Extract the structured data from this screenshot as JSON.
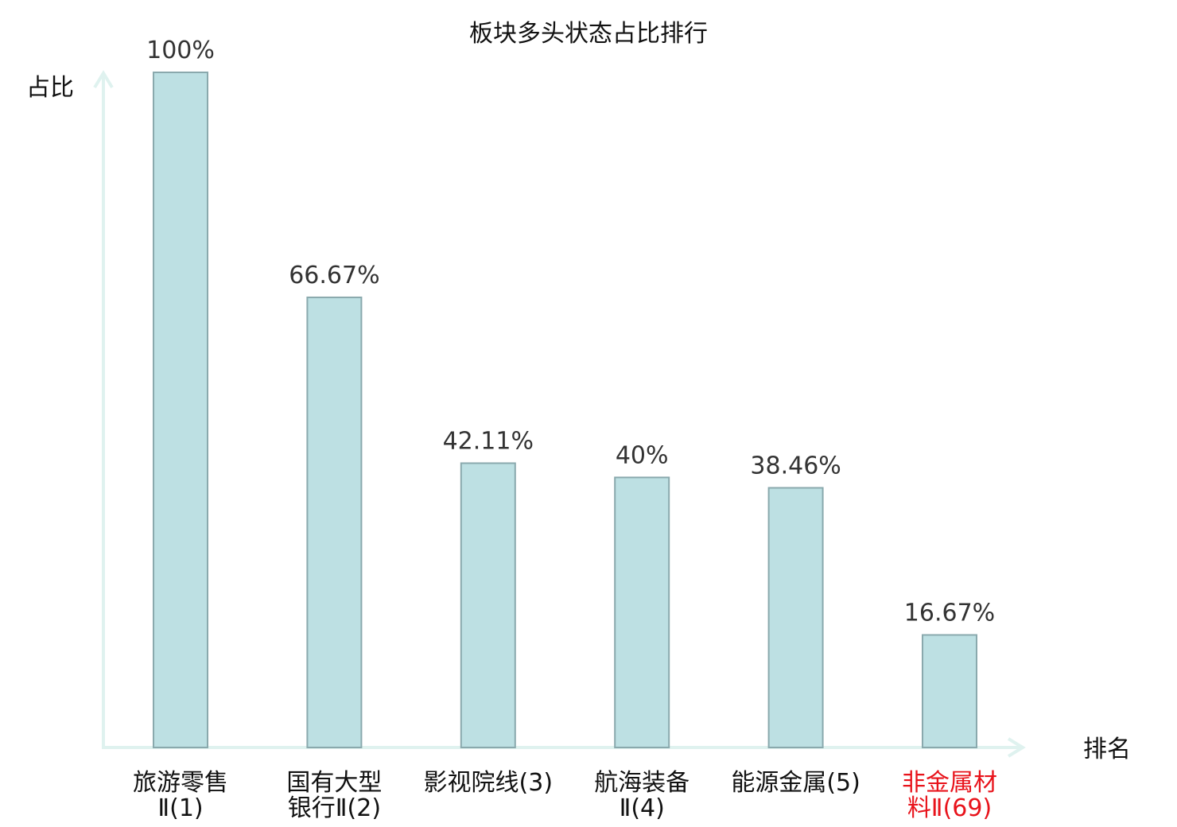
{
  "chart_data": {
    "type": "bar",
    "title": "板块多头状态占比排行",
    "ylabel": "占比",
    "xlabel": "排名",
    "ylim": [
      0,
      100
    ],
    "grid": false,
    "categories": [
      [
        "旅游零售",
        "Ⅱ(1)"
      ],
      [
        "国有大型",
        "银行Ⅱ(2)"
      ],
      [
        "影视院线(3)"
      ],
      [
        "航海装备",
        "Ⅱ(4)"
      ],
      [
        "能源金属(5)"
      ],
      [
        "非金属材",
        "料Ⅱ(69)"
      ]
    ],
    "values": [
      100,
      66.67,
      42.11,
      40,
      38.46,
      16.67
    ],
    "value_labels": [
      "100%",
      "66.67%",
      "42.11%",
      "40%",
      "38.46%",
      "16.67%"
    ],
    "highlight_index": 5,
    "colors": {
      "bar_fill": "#bde0e3",
      "bar_stroke": "#8aa9ad",
      "axis": "#dff2ef",
      "highlight_text": "#e8131b"
    }
  }
}
